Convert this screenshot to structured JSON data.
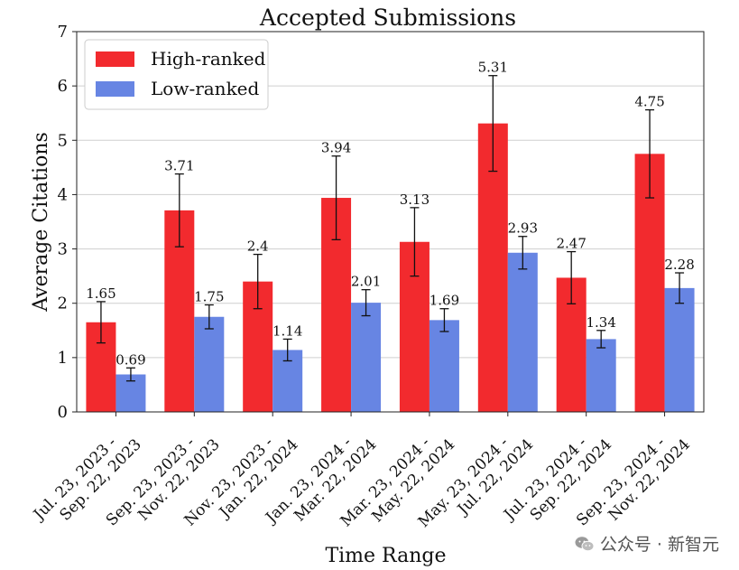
{
  "chart_data": {
    "type": "bar",
    "title": "Accepted Submissions",
    "xlabel": "Time Range",
    "ylabel": "Average Citations",
    "ylim": [
      0,
      7
    ],
    "yticks": [
      0,
      1,
      2,
      3,
      4,
      5,
      6,
      7
    ],
    "grid": "horizontal",
    "legend_position": "top-left",
    "categories": [
      [
        "Jul. 23, 2023 -",
        "Sep. 22, 2023"
      ],
      [
        "Sep. 23, 2023 -",
        "Nov. 22, 2023"
      ],
      [
        "Nov. 23, 2023 -",
        "Jan. 22, 2024"
      ],
      [
        "Jan. 23, 2024 -",
        "Mar. 22, 2024"
      ],
      [
        "Mar. 23, 2024 -",
        "May. 22, 2024"
      ],
      [
        "May. 23, 2024 -",
        "Jul. 22, 2024"
      ],
      [
        "Jul. 23, 2024 -",
        "Sep. 22, 2024"
      ],
      [
        "Sep. 23, 2024 -",
        "Nov. 22, 2024"
      ]
    ],
    "series": [
      {
        "name": "High-ranked",
        "color": "#f22a2e",
        "values": [
          1.65,
          3.71,
          2.4,
          3.94,
          3.13,
          5.31,
          2.47,
          4.75
        ],
        "labels": [
          "1.65",
          "3.71",
          "2.4",
          "3.94",
          "3.13",
          "5.31",
          "2.47",
          "4.75"
        ],
        "error": [
          0.38,
          0.67,
          0.5,
          0.77,
          0.63,
          0.88,
          0.48,
          0.81
        ]
      },
      {
        "name": "Low-ranked",
        "color": "#6785e3",
        "values": [
          0.69,
          1.75,
          1.14,
          2.01,
          1.69,
          2.93,
          1.34,
          2.28
        ],
        "labels": [
          "0.69",
          "1.75",
          "1.14",
          "2.01",
          "1.69",
          "2.93",
          "1.34",
          "2.28"
        ],
        "error": [
          0.12,
          0.22,
          0.2,
          0.24,
          0.21,
          0.3,
          0.16,
          0.28
        ]
      }
    ]
  },
  "watermark": {
    "text": "公众号 · 新智元",
    "icon": "wechat-icon"
  }
}
